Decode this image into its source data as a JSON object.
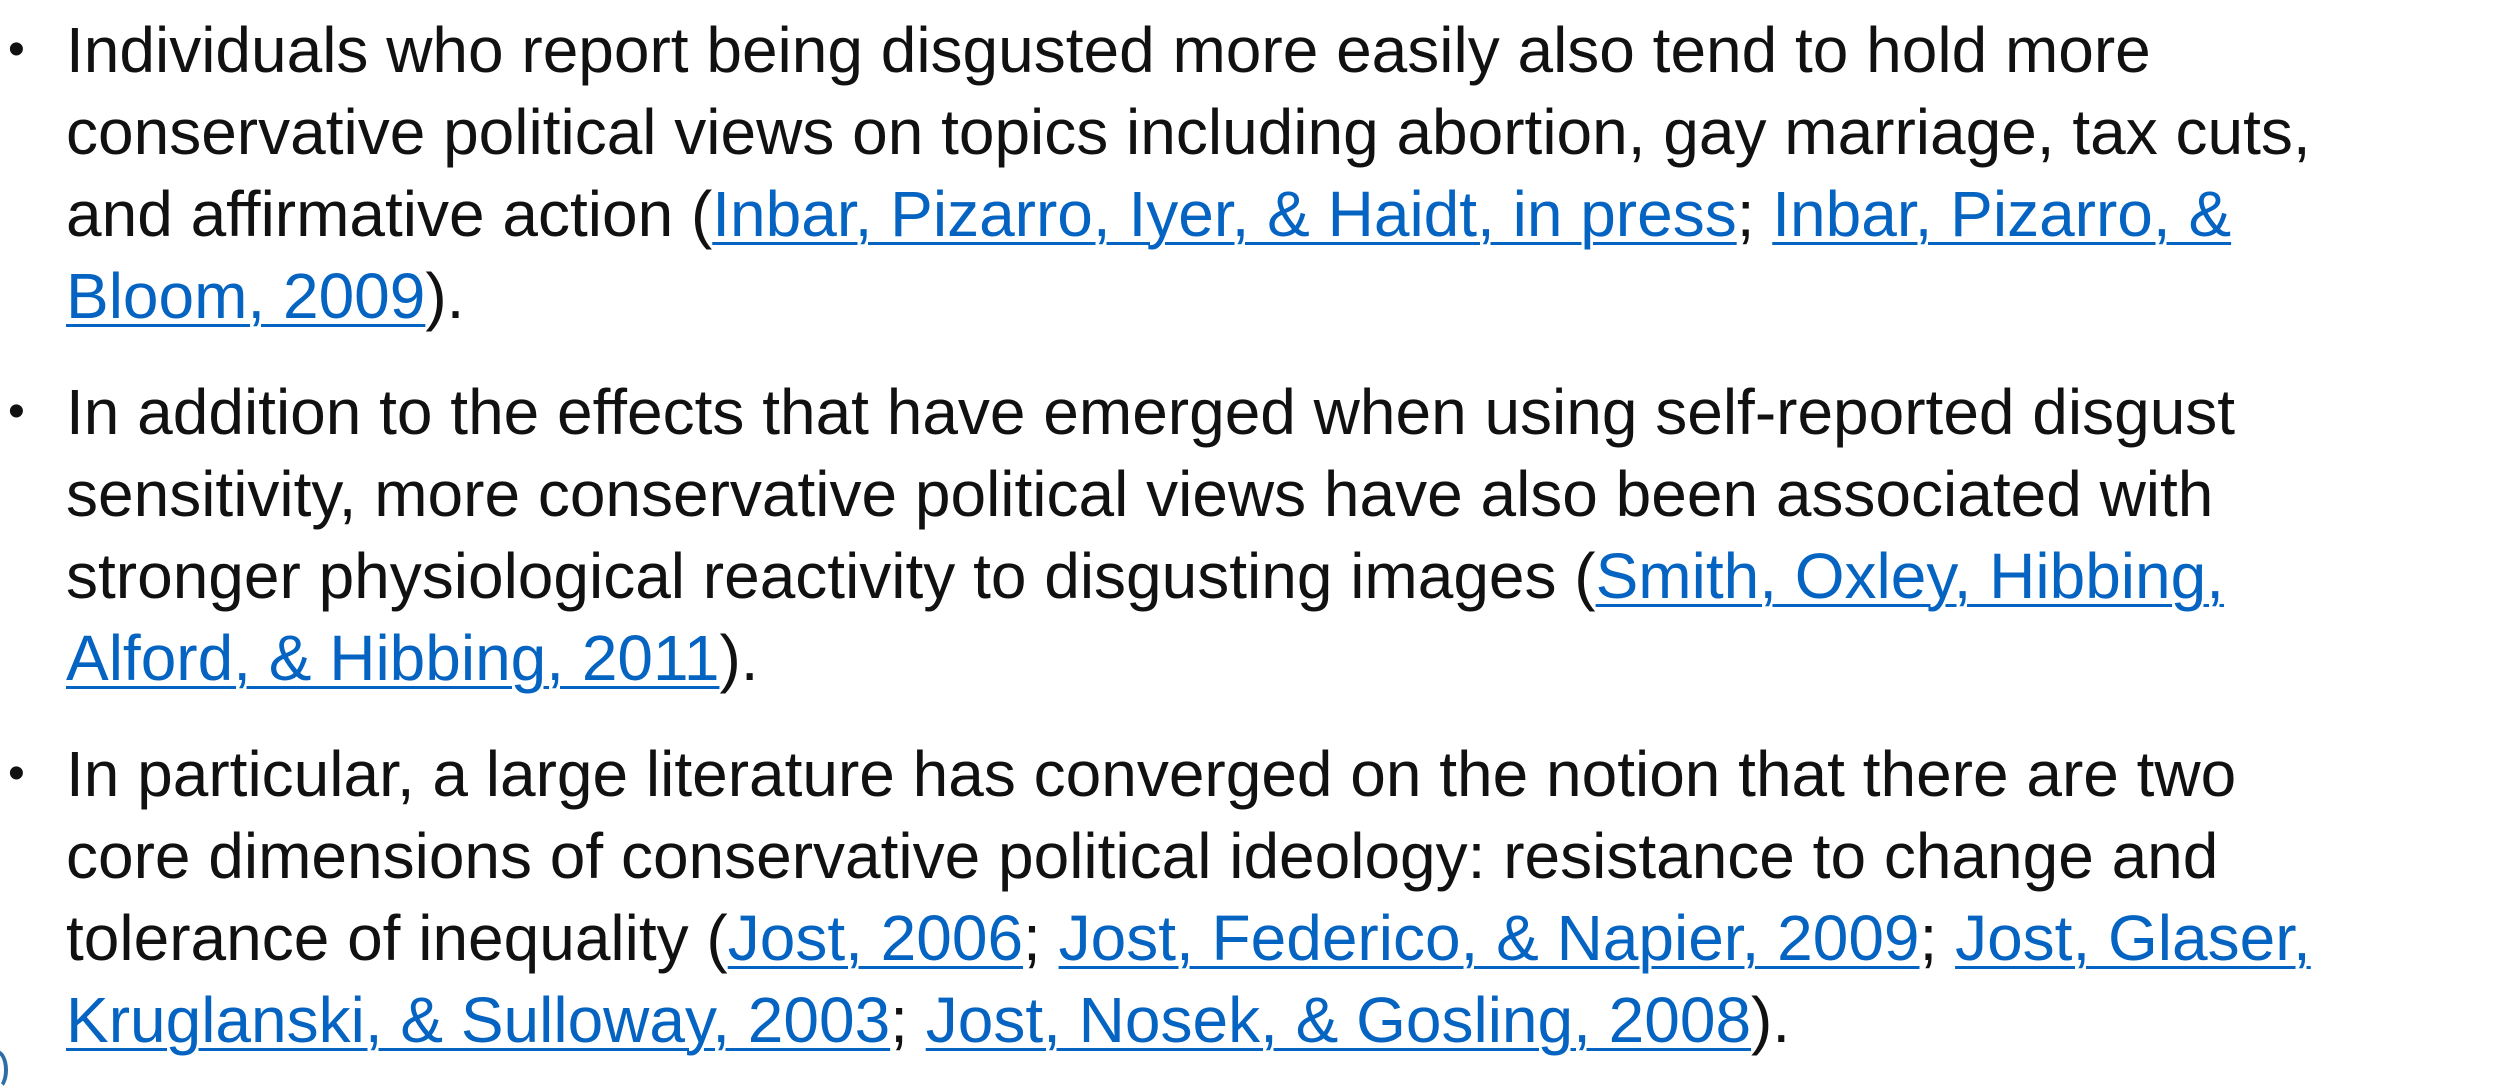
{
  "bullets": [
    {
      "lines": [
        [
          {
            "text": "Individuals who report being disgusted more easily also tend to hold more"
          }
        ],
        [
          {
            "text": "conservative political views on topics including abortion, gay marriage, tax cuts,"
          }
        ],
        [
          {
            "text": "and affirmative action ("
          },
          {
            "text": "Inbar, Pizarro, Iyer, & Haidt, in press",
            "link": true
          },
          {
            "text": "; "
          },
          {
            "text": "Inbar, Pizarro, &",
            "link": true
          }
        ],
        [
          {
            "text": "Bloom, 2009",
            "link": true
          },
          {
            "text": ")."
          }
        ]
      ]
    },
    {
      "lines": [
        [
          {
            "text": "In addition to the effects that have emerged when using self-reported disgust"
          }
        ],
        [
          {
            "text": "sensitivity, more conservative political views have also been associated with"
          }
        ],
        [
          {
            "text": "stronger physiological reactivity to disgusting images ("
          },
          {
            "text": "Smith, Oxley, Hibbing,",
            "link": true
          }
        ],
        [
          {
            "text": "Alford, & Hibbing, 2011",
            "link": true
          },
          {
            "text": ")."
          }
        ]
      ]
    },
    {
      "lines": [
        [
          {
            "text": "In particular, a large literature has converged on the notion that there are two"
          }
        ],
        [
          {
            "text": "core dimensions of conservative political ideology: resistance to change and"
          }
        ],
        [
          {
            "text": "tolerance of inequality ("
          },
          {
            "text": "Jost, 2006",
            "link": true
          },
          {
            "text": "; "
          },
          {
            "text": "Jost, Federico, & Napier, 2009",
            "link": true
          },
          {
            "text": "; "
          },
          {
            "text": "Jost, Glaser,",
            "link": true
          }
        ],
        [
          {
            "text": "Kruglanski, & Sulloway, 2003",
            "link": true
          },
          {
            "text": "; "
          },
          {
            "text": "Jost, Nosek, & Gosling, 2008",
            "link": true
          },
          {
            "text": ")."
          }
        ]
      ]
    }
  ],
  "bullet_glyph": "•",
  "colors": {
    "text": "#111111",
    "link": "#0563c1",
    "background": "#ffffff"
  }
}
